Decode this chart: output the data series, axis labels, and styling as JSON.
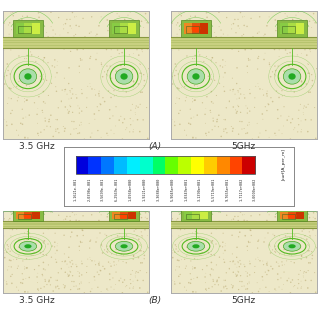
{
  "panel_labels": [
    "3.5 GHz",
    "(A)",
    "5GHz",
    "3.5 GHz",
    "(B)",
    "5GHz"
  ],
  "colorbar_label": "Jsurf[A_per_m]",
  "colorbar_ticks": [
    "1.1621e-001",
    "2.0398e-001",
    "3.5699e-001",
    "6.2569e-001",
    "1.0968e+000",
    "1.9221e+000",
    "3.3688e+000",
    "5.9045e+000",
    "1.0349e+001",
    "3.1390e+001",
    "5.5719e+001",
    "9.7655e+001",
    "1.7117e+002",
    "3.0000e+002"
  ],
  "bg_color": "#f5f0dc",
  "text_color": "#333333",
  "colorbar_box_color": "#ffffff",
  "panel_border": "#aaaaaa",
  "sandy_bg": "#ede8c8",
  "strip_color": "#b8c870",
  "strip_edge": "#889840",
  "via_outer": "#88cc44",
  "via_inner": "#cceeaa",
  "via_center": "#44aa22",
  "green_line": "#44aa22",
  "orange_hot": "#dd6610",
  "red_hot": "#cc2200",
  "yellow_warm": "#ddcc00",
  "green_cool": "#44bb22"
}
